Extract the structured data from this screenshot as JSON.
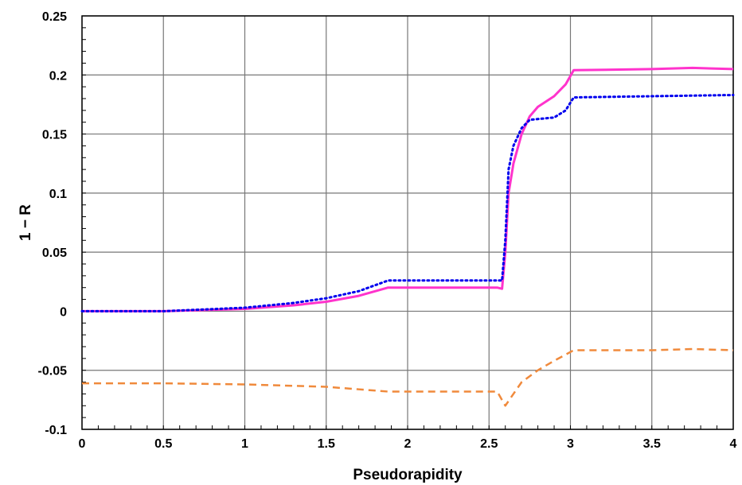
{
  "chart_data": {
    "type": "line",
    "title": "",
    "xlabel": "Pseudorapidity",
    "ylabel": "1 − R",
    "xlim": [
      0,
      4
    ],
    "ylim": [
      -0.1,
      0.25
    ],
    "grid": true,
    "x_ticks": [
      "0",
      "0.5",
      "1",
      "1.5",
      "2",
      "2.5",
      "3",
      "3.5",
      "4"
    ],
    "y_ticks": [
      "-0.1",
      "-0.05",
      "0",
      "0.05",
      "0.1",
      "0.15",
      "0.2",
      "0.25"
    ],
    "series": [
      {
        "color": "#ff33cc",
        "style": "solid",
        "points": [
          [
            0,
            0
          ],
          [
            0.5,
            0
          ],
          [
            1,
            0.002
          ],
          [
            1.3,
            0.005
          ],
          [
            1.5,
            0.008
          ],
          [
            1.7,
            0.013
          ],
          [
            1.88,
            0.02
          ],
          [
            2.2,
            0.02
          ],
          [
            2.5,
            0.02
          ],
          [
            2.55,
            0.02
          ],
          [
            2.58,
            0.019
          ],
          [
            2.6,
            0.05
          ],
          [
            2.62,
            0.1
          ],
          [
            2.65,
            0.125
          ],
          [
            2.7,
            0.15
          ],
          [
            2.75,
            0.165
          ],
          [
            2.8,
            0.173
          ],
          [
            2.9,
            0.182
          ],
          [
            2.97,
            0.192
          ],
          [
            3.02,
            0.204
          ],
          [
            3.5,
            0.205
          ],
          [
            3.75,
            0.206
          ],
          [
            4,
            0.205
          ]
        ]
      },
      {
        "color": "#0000ee",
        "style": "dotted",
        "points": [
          [
            0,
            0
          ],
          [
            0.5,
            0
          ],
          [
            1,
            0.003
          ],
          [
            1.3,
            0.007
          ],
          [
            1.5,
            0.011
          ],
          [
            1.7,
            0.017
          ],
          [
            1.88,
            0.026
          ],
          [
            2.2,
            0.026
          ],
          [
            2.55,
            0.026
          ],
          [
            2.58,
            0.026
          ],
          [
            2.6,
            0.06
          ],
          [
            2.62,
            0.12
          ],
          [
            2.65,
            0.14
          ],
          [
            2.7,
            0.155
          ],
          [
            2.75,
            0.162
          ],
          [
            2.9,
            0.164
          ],
          [
            2.97,
            0.17
          ],
          [
            3.02,
            0.181
          ],
          [
            3.5,
            0.182
          ],
          [
            4,
            0.183
          ]
        ]
      },
      {
        "color": "#f08a3c",
        "style": "dashed",
        "points": [
          [
            0,
            -0.061
          ],
          [
            0.5,
            -0.061
          ],
          [
            1,
            -0.062
          ],
          [
            1.5,
            -0.064
          ],
          [
            1.88,
            -0.068
          ],
          [
            2.2,
            -0.068
          ],
          [
            2.55,
            -0.068
          ],
          [
            2.6,
            -0.08
          ],
          [
            2.65,
            -0.07
          ],
          [
            2.7,
            -0.06
          ],
          [
            2.8,
            -0.05
          ],
          [
            2.9,
            -0.042
          ],
          [
            3.02,
            -0.033
          ],
          [
            3.5,
            -0.033
          ],
          [
            3.75,
            -0.032
          ],
          [
            4,
            -0.033
          ]
        ]
      }
    ]
  }
}
